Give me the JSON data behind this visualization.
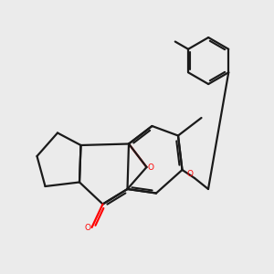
{
  "background_color": "#ebebeb",
  "bond_color": "#1a1a1a",
  "oxygen_color": "#ff0000",
  "line_width": 1.6,
  "figsize": [
    3.0,
    3.0
  ],
  "dpi": 100,
  "xlim": [
    0,
    10
  ],
  "ylim": [
    0,
    10
  ]
}
